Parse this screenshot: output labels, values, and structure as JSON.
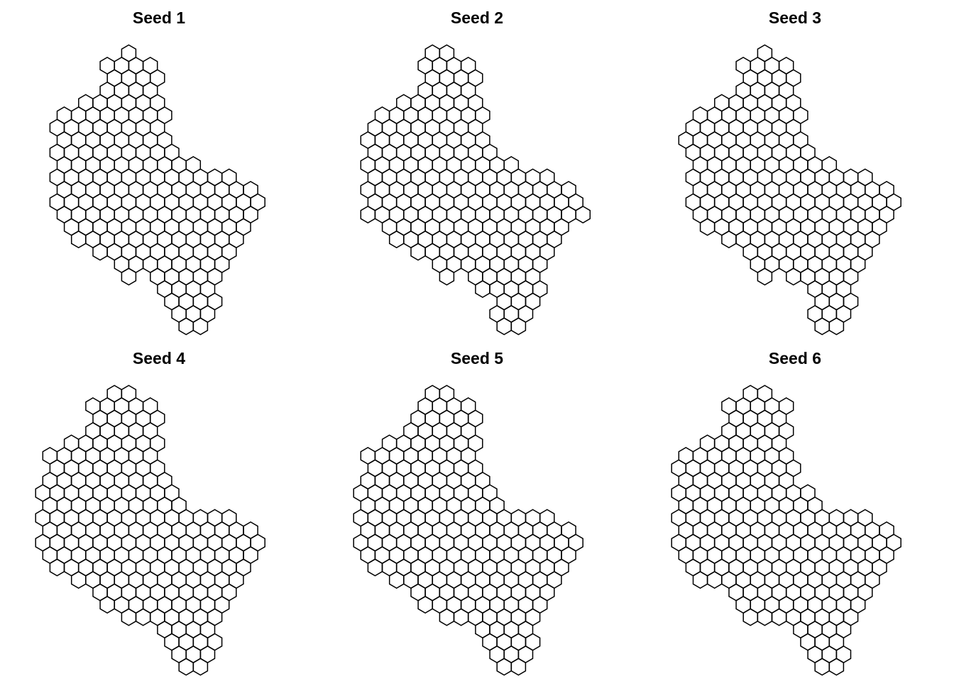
{
  "figure": {
    "panels": [
      {
        "title": "Seed 1"
      },
      {
        "title": "Seed 2"
      },
      {
        "title": "Seed 3"
      },
      {
        "title": "Seed 4"
      },
      {
        "title": "Seed 5"
      },
      {
        "title": "Seed 6"
      }
    ]
  },
  "colors": {
    "stroke": "#000000",
    "fill": "none",
    "background": "#ffffff"
  }
}
